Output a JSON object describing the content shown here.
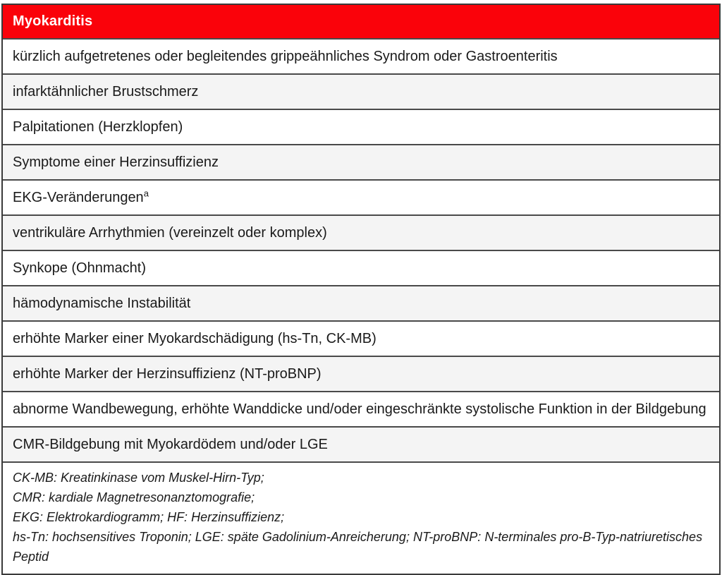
{
  "title": "Myokarditis",
  "colors": {
    "header_bg": "#fa020a",
    "header_text": "#ffffff",
    "row_alt_bg": "#f4f4f4",
    "border": "#3a3a3a",
    "text": "#1a1a1a"
  },
  "rows": [
    {
      "text": "kürzlich aufgetretenes oder begleitendes grippeähnliches Syndrom oder Gastroenteritis"
    },
    {
      "text": "infarktähnlicher Brustschmerz"
    },
    {
      "text": "Palpitationen (Herzklopfen)"
    },
    {
      "text": "Symptome einer Herzinsuffizienz"
    },
    {
      "text": "EKG-Veränderungen",
      "sup": "a"
    },
    {
      "text": "ventrikuläre Arrhythmien (vereinzelt oder komplex)"
    },
    {
      "text": "Synkope (Ohnmacht)"
    },
    {
      "text": "hämodynamische Instabilität"
    },
    {
      "text": "erhöhte Marker einer Myokardschädigung (hs-Tn, CK-MB)"
    },
    {
      "text": "erhöhte Marker der Herzinsuffizienz (NT-proBNP)"
    },
    {
      "text": "abnorme Wandbewegung, erhöhte Wanddicke und/oder eingeschränkte systolische Funktion in der Bildgebung"
    },
    {
      "text": "CMR-Bildgebung mit Myokardödem und/oder LGE"
    }
  ],
  "footnotes": [
    "CK-MB: Kreatinkinase vom Muskel-Hirn-Typ;",
    "CMR: kardiale Magnetresonanztomografie;",
    "EKG: Elektrokardiogramm; HF: Herzinsuffizienz;",
    "hs-Tn: hochsensitives Troponin; LGE: späte Gadolinium-Anreicherung; NT-proBNP: N-terminales pro-B-Typ-natriuretisches Peptid"
  ]
}
